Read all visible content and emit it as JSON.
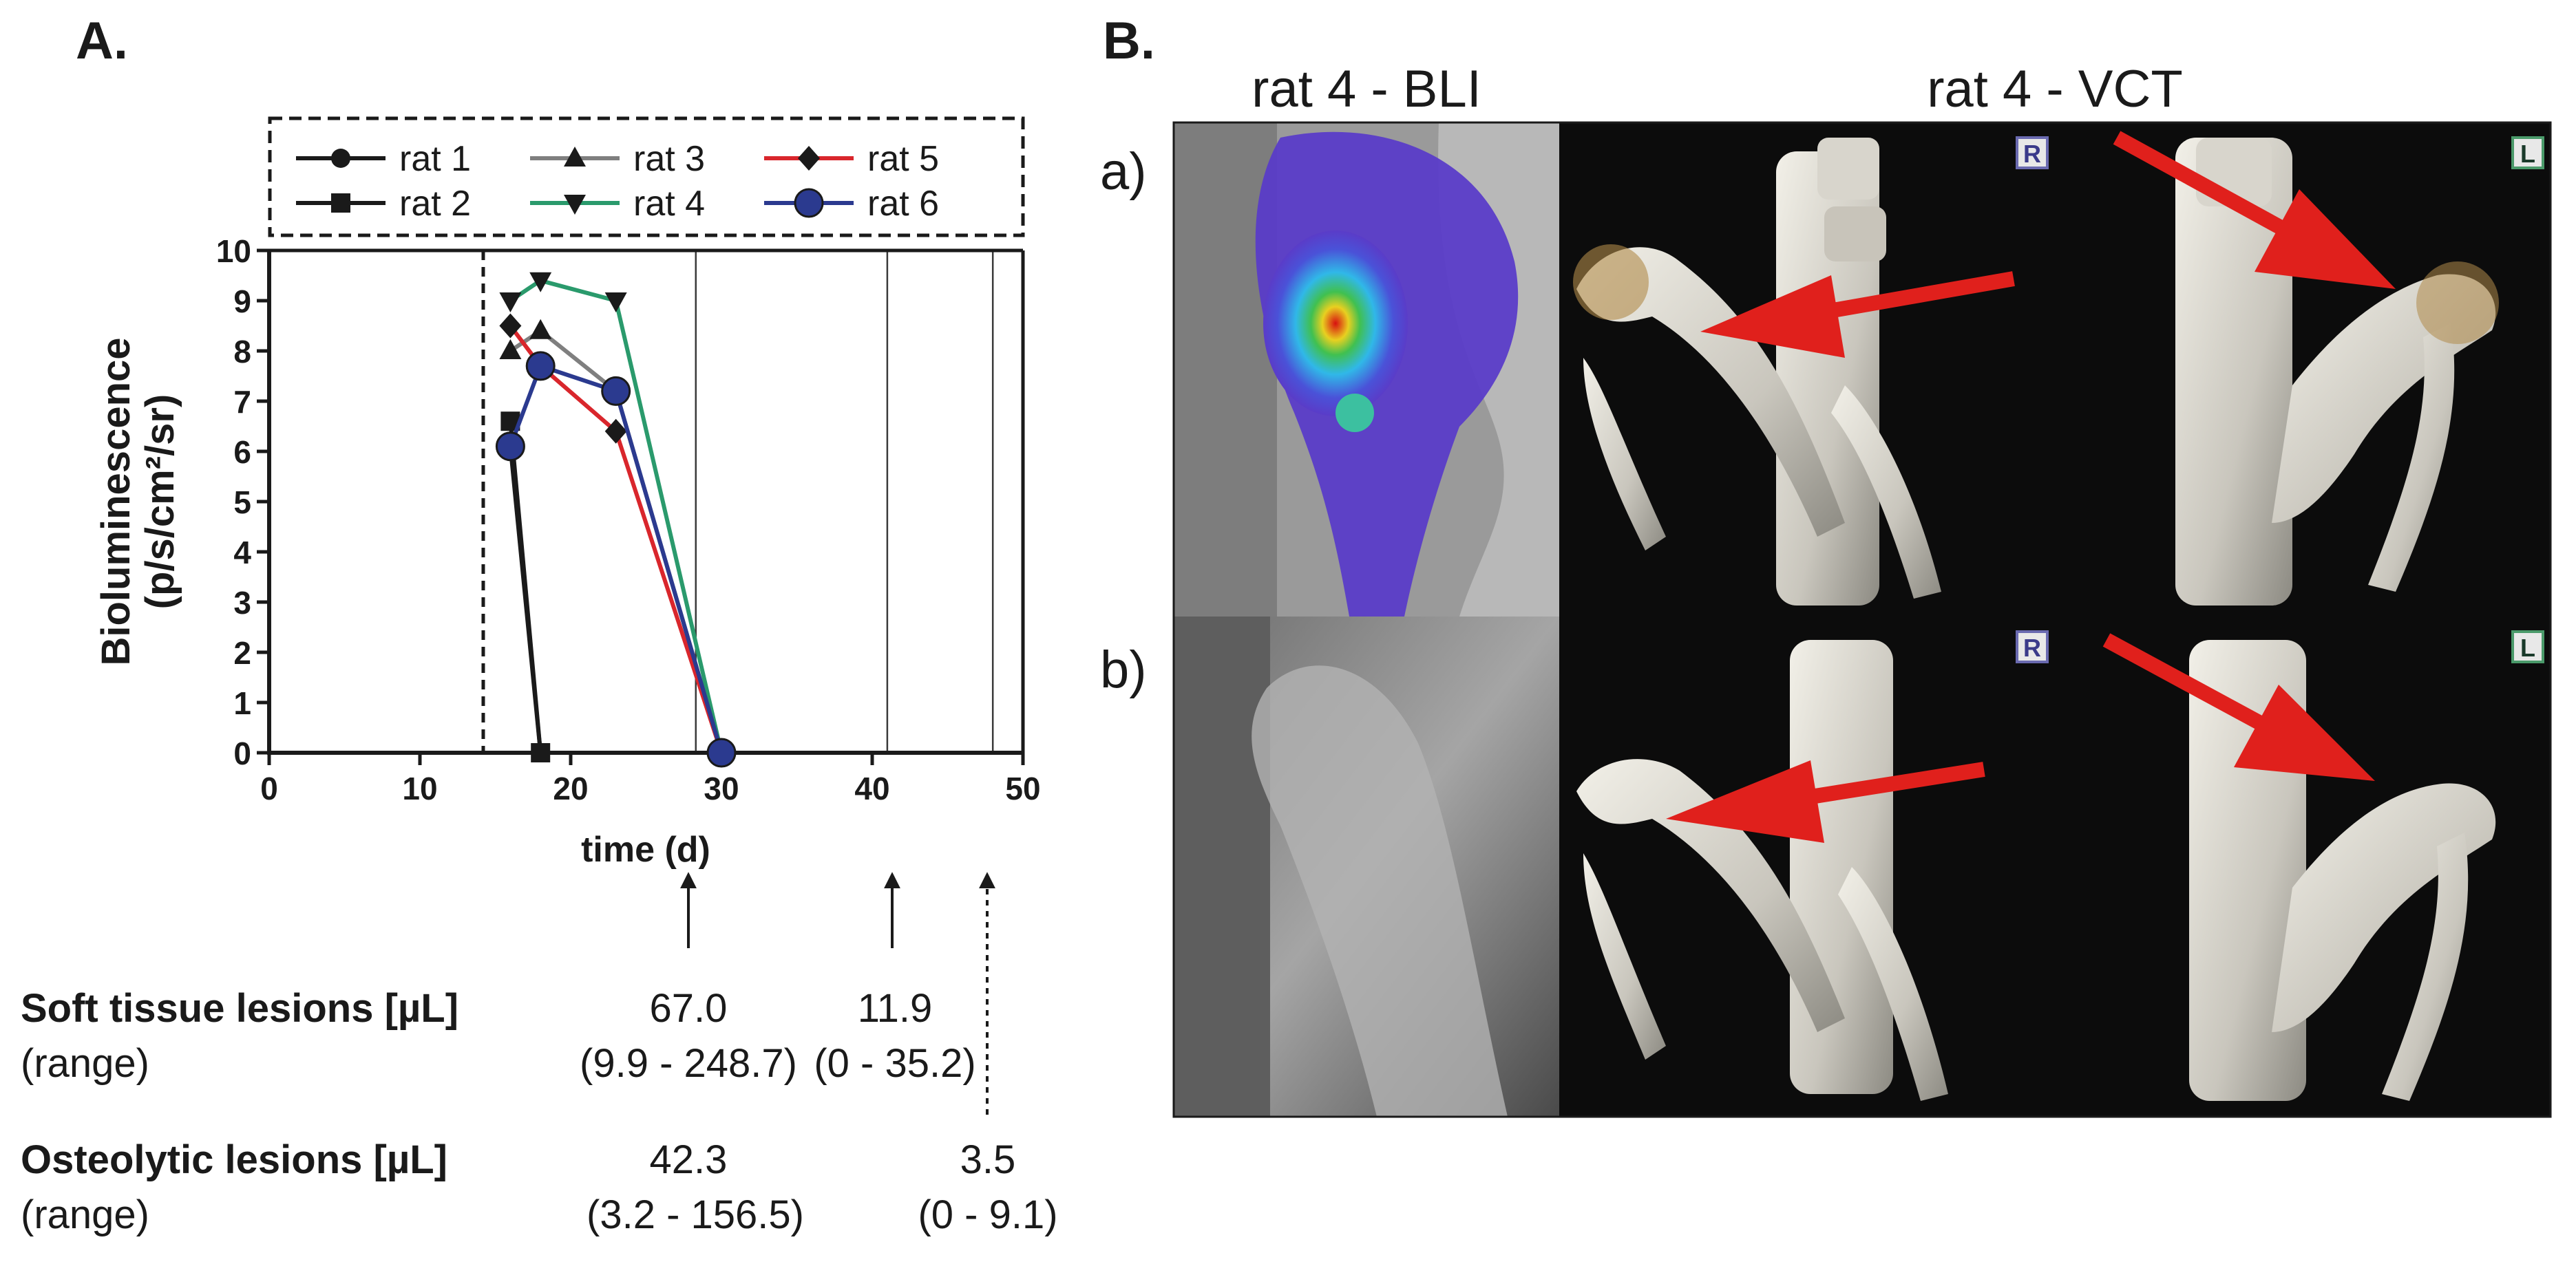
{
  "panel_a_label": "A.",
  "panel_b_label": "B.",
  "chart_data": {
    "type": "line",
    "xlabel": "time (d)",
    "ylabel": "Bioluminescence",
    "ylabel_unit": "(p/s/cm²/sr)",
    "xlim": [
      0,
      50
    ],
    "ylim": [
      0,
      10
    ],
    "xticks": [
      0,
      10,
      20,
      30,
      40,
      50
    ],
    "yticks": [
      0,
      1,
      2,
      3,
      4,
      5,
      6,
      7,
      8,
      9,
      10
    ],
    "dashed_vline_x": 14.2,
    "solid_vlines_x": [
      28.3,
      41,
      48
    ],
    "legend_position": "top",
    "series": [
      {
        "name": "rat 1",
        "marker": "circle",
        "color": "#1a1a1a",
        "x": [
          16,
          18
        ],
        "y": [
          6.1,
          0
        ]
      },
      {
        "name": "rat 2",
        "marker": "square",
        "color": "#1a1a1a",
        "x": [
          16,
          18
        ],
        "y": [
          6.6,
          0
        ]
      },
      {
        "name": "rat 3",
        "marker": "triangle-up",
        "color": "#7f7f7f",
        "x": [
          16,
          18,
          23,
          30
        ],
        "y": [
          8.0,
          8.4,
          7.2,
          0
        ]
      },
      {
        "name": "rat 4",
        "marker": "triangle-down",
        "color": "#2a9a6c",
        "x": [
          16,
          18,
          23,
          30
        ],
        "y": [
          9.0,
          9.4,
          9.0,
          0
        ]
      },
      {
        "name": "rat 5",
        "marker": "diamond",
        "color": "#d9262c",
        "x": [
          16,
          18,
          23,
          30
        ],
        "y": [
          8.5,
          7.7,
          6.4,
          0
        ]
      },
      {
        "name": "rat 6",
        "marker": "big-circle",
        "color": "#2b3a8f",
        "x": [
          16,
          18,
          23,
          30
        ],
        "y": [
          6.1,
          7.7,
          7.2,
          0
        ]
      }
    ]
  },
  "measurements": {
    "soft_title": "Soft tissue lesions [µL]",
    "soft_range_label": "(range)",
    "soft_val_1": "67.0",
    "soft_range_1": "(9.9 - 248.7)",
    "soft_val_2": "11.9",
    "soft_range_2": "(0 - 35.2)",
    "osteo_title": "Osteolytic lesions [µL]",
    "osteo_range_label": "(range)",
    "osteo_val_1": "42.3",
    "osteo_range_1": "(3.2 - 156.5)",
    "osteo_val_2": "3.5",
    "osteo_range_2": "(0 - 9.1)"
  },
  "panel_b": {
    "bli_title": "rat 4 - BLI",
    "vct_title": "rat 4 - VCT",
    "row_a_label": "a)",
    "row_b_label": "b)",
    "side_right": "R",
    "side_left": "L",
    "arrow_color": "#e0201c"
  }
}
